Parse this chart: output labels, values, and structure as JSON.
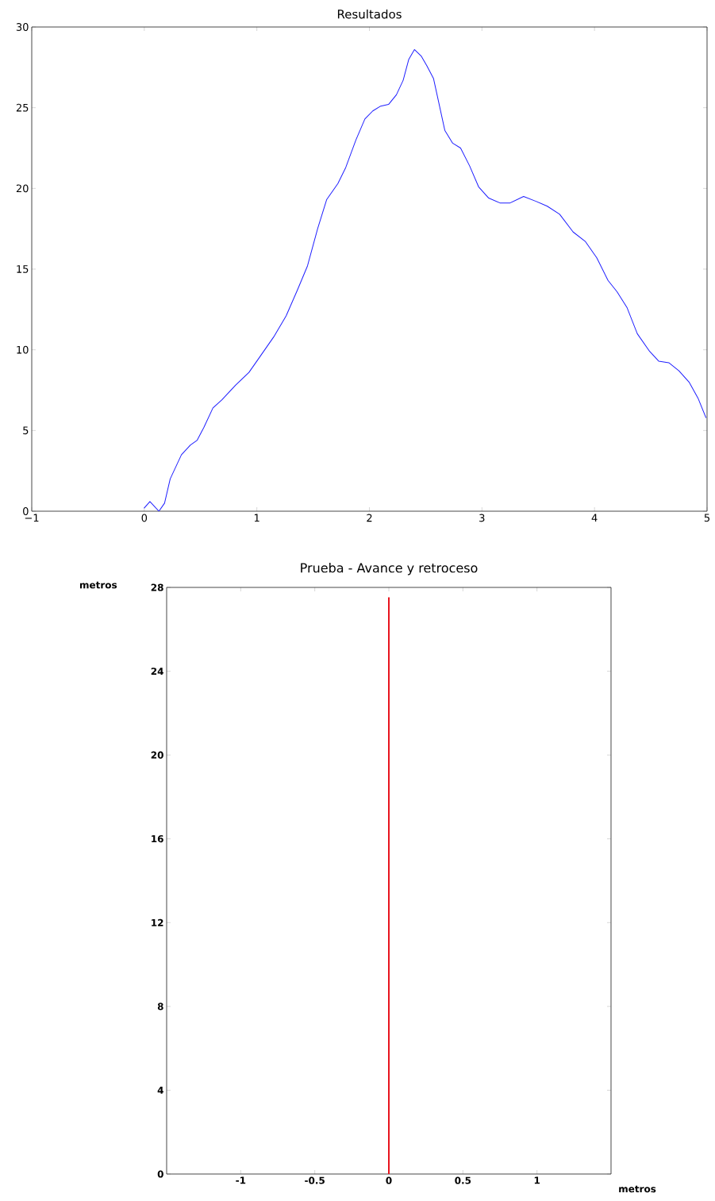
{
  "chart_data": [
    {
      "type": "line",
      "title": "Resultados",
      "xlim": [
        -1,
        5
      ],
      "ylim": [
        0,
        30
      ],
      "xticks": [
        {
          "value": -1,
          "label": "−1"
        },
        0,
        1,
        2,
        3,
        4,
        5
      ],
      "yticks": [
        0,
        5,
        10,
        15,
        20,
        25,
        30
      ],
      "series": [
        {
          "color": "#1f1fff",
          "x": [
            0,
            0.05,
            0.13,
            0.18,
            0.23,
            0.33,
            0.41,
            0.47,
            0.53,
            0.61,
            0.69,
            0.81,
            0.93,
            1.02,
            1.15,
            1.26,
            1.36,
            1.45,
            1.54,
            1.62,
            1.72,
            1.79,
            1.88,
            1.96,
            2.03,
            2.1,
            2.17,
            2.24,
            2.3,
            2.35,
            2.4,
            2.46,
            2.51,
            2.57,
            2.62,
            2.67,
            2.74,
            2.81,
            2.89,
            2.97,
            3.06,
            3.16,
            3.25,
            3.37,
            3.48,
            3.58,
            3.69,
            3.81,
            3.92,
            4.02,
            4.12,
            4.2,
            4.29,
            4.38,
            4.49,
            4.57,
            4.66,
            4.75,
            4.84,
            4.92,
            4.99
          ],
          "values": [
            0.2,
            0.6,
            0,
            0.5,
            2,
            3.5,
            4.1,
            4.4,
            5.2,
            6.4,
            6.9,
            7.8,
            8.6,
            9.5,
            10.8,
            12.1,
            13.7,
            15.2,
            17.5,
            19.3,
            20.3,
            21.3,
            23,
            24.3,
            24.8,
            25.1,
            25.2,
            25.8,
            26.7,
            28,
            28.6,
            28.2,
            27.6,
            26.8,
            25.2,
            23.6,
            22.8,
            22.5,
            21.4,
            20.1,
            19.4,
            19.1,
            19.1,
            19.5,
            19.2,
            18.9,
            18.4,
            17.3,
            16.7,
            15.7,
            14.3,
            13.6,
            12.6,
            11,
            9.9,
            9.3,
            9.2,
            8.7,
            8,
            7,
            5.8
          ]
        }
      ]
    },
    {
      "type": "line",
      "title": "Prueba - Avance y retroceso",
      "xlabel": "metros",
      "ylabel": "metros",
      "xlim": [
        -1.5,
        1.5
      ],
      "ylim": [
        0,
        28
      ],
      "xticks": [
        -1,
        -0.5,
        0,
        0.5,
        1
      ],
      "yticks": [
        0,
        4,
        8,
        12,
        16,
        20,
        24,
        28
      ],
      "series": [
        {
          "color": "#e8141e",
          "x": [
            0,
            0
          ],
          "values": [
            0,
            27.5
          ]
        }
      ]
    }
  ]
}
